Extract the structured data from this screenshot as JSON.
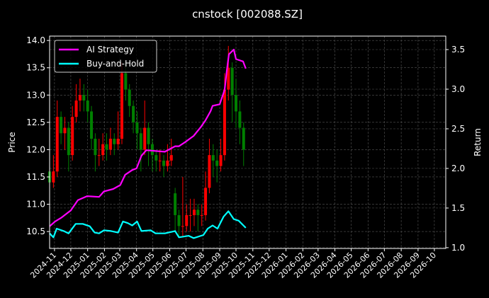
{
  "chart_data": {
    "type": "candlestick+line",
    "title": "cnstock [002088.SZ]",
    "ylabel": "Price",
    "y2label": "Return",
    "xlim": [
      "2024-10-23",
      "2026-10-22"
    ],
    "ylim": [
      10.19,
      14.08
    ],
    "y2lim": [
      0.99,
      3.67
    ],
    "grid": true,
    "legend_position": "top-left",
    "x_tick_labels": [
      "2024-11",
      "2024-12",
      "2025-01",
      "2025-02",
      "2025-03",
      "2025-04",
      "2025-05",
      "2025-06",
      "2025-07",
      "2025-08",
      "2025-09",
      "2025-10",
      "2025-11",
      "2025-12",
      "2026-01",
      "2026-02",
      "2026-03",
      "2026-04",
      "2026-05",
      "2026-06",
      "2026-07",
      "2026-08",
      "2026-09",
      "2026-10"
    ],
    "y_ticks": [
      "10.5",
      "11.0",
      "11.5",
      "12.0",
      "12.5",
      "13.0",
      "13.5",
      "14.0"
    ],
    "y2_ticks": [
      "1.0",
      "1.5",
      "2.0",
      "2.5",
      "3.0",
      "3.5"
    ],
    "colors": {
      "up": "#ff0000",
      "down": "#008000",
      "strategy": "#ff00ff",
      "buyhold": "#00ffff",
      "grid": "#555555"
    },
    "candles": {
      "columns": [
        "date",
        "open",
        "high",
        "low",
        "close"
      ],
      "rows": [
        [
          "2024-10-23",
          11.6,
          11.8,
          11.2,
          11.4
        ],
        [
          "2024-10-30",
          11.4,
          11.9,
          11.3,
          11.6
        ],
        [
          "2024-11-06",
          11.6,
          12.9,
          11.5,
          12.6
        ],
        [
          "2024-11-13",
          12.6,
          12.7,
          12.1,
          12.3
        ],
        [
          "2024-11-20",
          12.3,
          12.6,
          12.0,
          12.4
        ],
        [
          "2024-11-27",
          12.4,
          12.5,
          11.6,
          11.9
        ],
        [
          "2024-12-04",
          11.9,
          12.8,
          11.8,
          12.6
        ],
        [
          "2024-12-11",
          12.6,
          13.2,
          12.5,
          12.9
        ],
        [
          "2024-12-18",
          12.9,
          13.3,
          12.7,
          13.0
        ],
        [
          "2024-12-25",
          13.0,
          13.2,
          12.7,
          12.9
        ],
        [
          "2025-01-01",
          12.9,
          13.1,
          12.5,
          12.7
        ],
        [
          "2025-01-08",
          12.7,
          12.8,
          12.0,
          12.2
        ],
        [
          "2025-01-15",
          12.2,
          12.3,
          11.6,
          11.9
        ],
        [
          "2025-01-22",
          11.9,
          12.2,
          11.7,
          11.9
        ],
        [
          "2025-01-29",
          11.9,
          12.3,
          11.8,
          12.1
        ],
        [
          "2025-02-05",
          12.1,
          12.3,
          11.8,
          12.0
        ],
        [
          "2025-02-12",
          12.0,
          12.4,
          11.9,
          12.2
        ],
        [
          "2025-02-19",
          12.2,
          12.3,
          11.9,
          12.1
        ],
        [
          "2025-02-26",
          12.1,
          12.7,
          12.0,
          12.2
        ],
        [
          "2025-03-05",
          12.2,
          13.6,
          12.1,
          13.4
        ],
        [
          "2025-03-12",
          13.4,
          13.6,
          12.9,
          13.1
        ],
        [
          "2025-03-19",
          13.1,
          13.2,
          12.6,
          12.8
        ],
        [
          "2025-03-26",
          12.8,
          12.9,
          12.3,
          12.5
        ],
        [
          "2025-04-02",
          12.5,
          12.7,
          12.0,
          12.3
        ],
        [
          "2025-04-09",
          12.3,
          12.4,
          11.6,
          12.0
        ],
        [
          "2025-04-16",
          12.0,
          12.9,
          11.9,
          12.4
        ],
        [
          "2025-04-23",
          12.4,
          12.5,
          11.7,
          12.1
        ],
        [
          "2025-04-30",
          12.1,
          12.2,
          11.6,
          11.9
        ],
        [
          "2025-05-07",
          11.9,
          12.0,
          11.6,
          11.8
        ],
        [
          "2025-05-14",
          11.8,
          12.0,
          11.6,
          11.8
        ],
        [
          "2025-05-21",
          11.8,
          11.9,
          11.5,
          11.7
        ],
        [
          "2025-05-28",
          11.7,
          12.1,
          11.6,
          11.8
        ],
        [
          "2025-06-04",
          11.8,
          12.2,
          11.7,
          11.9
        ],
        [
          "2025-06-11",
          11.2,
          11.3,
          10.5,
          10.8
        ],
        [
          "2025-06-18",
          10.8,
          10.9,
          10.4,
          10.6
        ],
        [
          "2025-06-25",
          10.6,
          11.5,
          10.4,
          10.6
        ],
        [
          "2025-07-02",
          10.6,
          11.0,
          10.5,
          10.8
        ],
        [
          "2025-07-09",
          10.8,
          11.1,
          10.5,
          10.8
        ],
        [
          "2025-07-16",
          10.8,
          11.1,
          10.6,
          10.9
        ],
        [
          "2025-07-23",
          10.9,
          11.0,
          10.5,
          10.8
        ],
        [
          "2025-07-30",
          10.8,
          11.0,
          10.6,
          10.8
        ],
        [
          "2025-08-06",
          10.8,
          11.6,
          10.7,
          11.3
        ],
        [
          "2025-08-13",
          11.3,
          12.2,
          11.2,
          11.9
        ],
        [
          "2025-08-20",
          11.9,
          12.1,
          11.5,
          11.8
        ],
        [
          "2025-08-27",
          11.8,
          12.0,
          11.4,
          11.7
        ],
        [
          "2025-09-03",
          11.7,
          12.2,
          11.6,
          11.9
        ],
        [
          "2025-09-10",
          11.9,
          13.4,
          11.8,
          13.1
        ],
        [
          "2025-09-17",
          13.1,
          13.9,
          12.9,
          13.5
        ],
        [
          "2025-09-24",
          13.5,
          13.6,
          12.5,
          13.0
        ],
        [
          "2025-10-01",
          13.0,
          13.3,
          12.4,
          12.7
        ],
        [
          "2025-10-08",
          12.7,
          12.9,
          12.1,
          12.4
        ],
        [
          "2025-10-15",
          12.4,
          12.5,
          11.7,
          12.0
        ]
      ]
    },
    "series": [
      {
        "name": "AI Strategy",
        "axis": "right",
        "x": [
          "2024-10-23",
          "2024-11-02",
          "2024-11-14",
          "2024-12-01",
          "2024-12-14",
          "2024-12-31",
          "2025-01-22",
          "2025-01-31",
          "2025-02-17",
          "2025-03-02",
          "2025-03-11",
          "2025-03-24",
          "2025-04-01",
          "2025-04-10",
          "2025-04-19",
          "2025-05-06",
          "2025-05-23",
          "2025-06-11",
          "2025-06-18",
          "2025-07-01",
          "2025-07-15",
          "2025-07-28",
          "2025-08-06",
          "2025-08-15",
          "2025-08-19",
          "2025-09-01",
          "2025-09-10",
          "2025-09-14",
          "2025-09-18",
          "2025-09-27",
          "2025-10-01",
          "2025-10-14",
          "2025-10-19"
        ],
        "y": [
          1.27,
          1.33,
          1.38,
          1.47,
          1.6,
          1.65,
          1.64,
          1.71,
          1.74,
          1.79,
          1.92,
          1.98,
          2.0,
          2.16,
          2.23,
          2.22,
          2.21,
          2.28,
          2.28,
          2.34,
          2.41,
          2.52,
          2.61,
          2.72,
          2.79,
          2.81,
          2.99,
          3.23,
          3.44,
          3.5,
          3.38,
          3.35,
          3.26
        ]
      },
      {
        "name": "Buy-and-Hold",
        "axis": "right",
        "x": [
          "2024-10-23",
          "2024-10-30",
          "2024-11-05",
          "2024-11-18",
          "2024-11-27",
          "2024-12-10",
          "2024-12-23",
          "2025-01-05",
          "2025-01-14",
          "2025-01-22",
          "2025-01-31",
          "2025-02-13",
          "2025-02-26",
          "2025-03-07",
          "2025-03-16",
          "2025-03-24",
          "2025-04-02",
          "2025-04-10",
          "2025-04-27",
          "2025-05-06",
          "2025-05-23",
          "2025-06-11",
          "2025-06-18",
          "2025-07-06",
          "2025-07-15",
          "2025-08-02",
          "2025-08-10",
          "2025-08-19",
          "2025-08-28",
          "2025-09-08",
          "2025-09-17",
          "2025-09-27",
          "2025-10-06",
          "2025-10-19"
        ],
        "y": [
          1.18,
          1.13,
          1.24,
          1.21,
          1.18,
          1.3,
          1.3,
          1.27,
          1.19,
          1.18,
          1.22,
          1.21,
          1.19,
          1.33,
          1.31,
          1.28,
          1.33,
          1.21,
          1.22,
          1.18,
          1.18,
          1.21,
          1.13,
          1.15,
          1.12,
          1.16,
          1.24,
          1.28,
          1.24,
          1.39,
          1.46,
          1.36,
          1.34,
          1.25
        ]
      }
    ]
  }
}
